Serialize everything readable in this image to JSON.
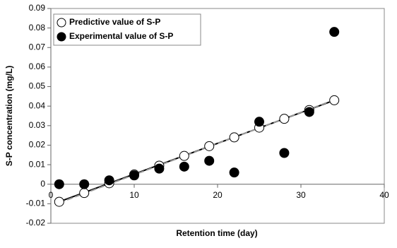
{
  "chart_data": {
    "type": "scatter",
    "xlabel": "Retention time (day)",
    "ylabel": "S-P concentration (mg/L)",
    "x": [
      1,
      4,
      7,
      10,
      13,
      16,
      19,
      22,
      25,
      28,
      31,
      34
    ],
    "series": [
      {
        "name": "Predictive value of S-P",
        "color": "#ffffff",
        "values": [
          -0.009,
          -0.0045,
          0.0005,
          0.005,
          0.0095,
          0.0145,
          0.0195,
          0.024,
          0.029,
          0.0335,
          0.038,
          0.043
        ]
      },
      {
        "name": "Experimental value of S-P",
        "color": "#000000",
        "values": [
          0,
          0,
          0.002,
          0.0045,
          0.008,
          0.009,
          0.012,
          0.006,
          0.032,
          0.016,
          0.037,
          0.078
        ]
      }
    ],
    "trendlines": [
      {
        "x": [
          1,
          34
        ],
        "values": [
          -0.009,
          0.043
        ],
        "color": "#000000",
        "dashed": false
      },
      {
        "x": [
          1,
          34.5
        ],
        "values": [
          -0.0095,
          0.044
        ],
        "color": "#999999",
        "dashed": true
      }
    ],
    "xlim": [
      0,
      40
    ],
    "xticks": [
      0,
      10,
      20,
      30,
      40
    ],
    "ylim": [
      -0.02,
      0.09
    ],
    "yticks": [
      -0.02,
      -0.01,
      0,
      0.01,
      0.02,
      0.03,
      0.04,
      0.05,
      0.06,
      0.07,
      0.08,
      0.09
    ],
    "legend": "upper-left"
  }
}
